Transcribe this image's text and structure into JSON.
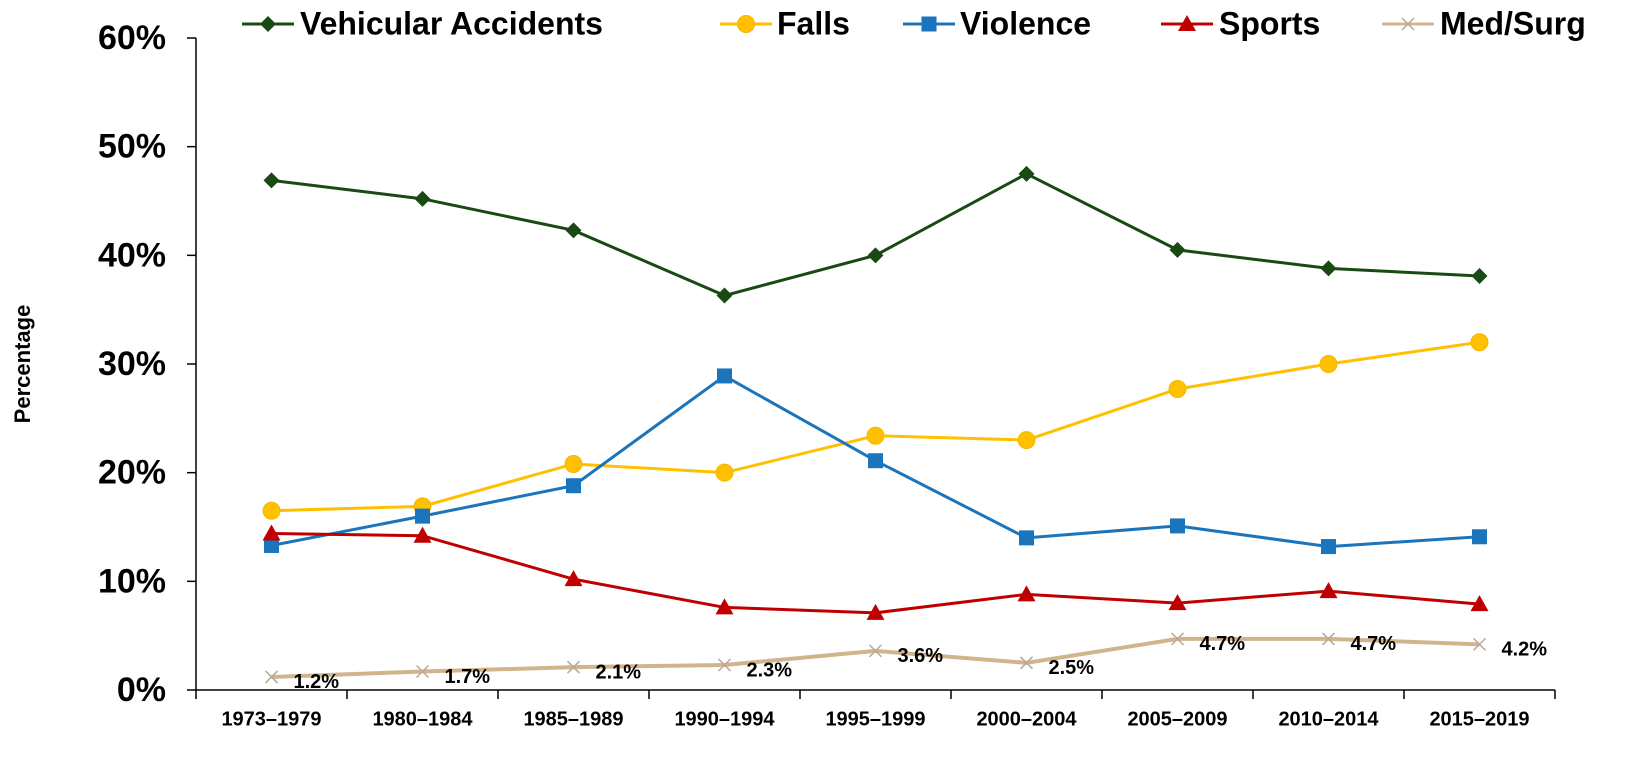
{
  "chart_data": {
    "type": "line",
    "y_label": "Percentage",
    "categories": [
      "1973–1979",
      "1980–1984",
      "1985–1989",
      "1990–1994",
      "1995–1999",
      "2000–2004",
      "2005–2009",
      "2010–2014",
      "2015–2019"
    ],
    "series": [
      {
        "name": "Vehicular Accidents",
        "color": "#1a4a14",
        "marker": "diamond",
        "values": [
          46.9,
          45.2,
          42.3,
          36.3,
          40.0,
          47.5,
          40.5,
          38.8,
          38.1
        ]
      },
      {
        "name": "Falls",
        "color": "#ffc000",
        "marker": "circle",
        "values": [
          16.5,
          16.9,
          20.8,
          20.0,
          23.4,
          23.0,
          27.7,
          30.0,
          32.0
        ]
      },
      {
        "name": "Violence",
        "color": "#1b75bc",
        "marker": "square",
        "values": [
          13.3,
          16.0,
          18.8,
          28.9,
          21.1,
          14.0,
          15.1,
          13.2,
          14.1
        ]
      },
      {
        "name": "Sports",
        "color": "#c00000",
        "marker": "triangle",
        "values": [
          14.4,
          14.2,
          10.2,
          7.6,
          7.1,
          8.8,
          8.0,
          9.1,
          7.9
        ]
      },
      {
        "name": "Med/Surg",
        "color": "#d2b48c",
        "marker": "x",
        "values": [
          1.2,
          1.7,
          2.1,
          2.3,
          3.6,
          2.5,
          4.7,
          4.7,
          4.2
        ],
        "value_labels": [
          "1.2%",
          "1.7%",
          "2.1%",
          "2.3%",
          "3.6%",
          "2.5%",
          "4.7%",
          "4.7%",
          "4.2%"
        ]
      }
    ],
    "ylim": [
      0,
      60
    ],
    "yticks": [
      {
        "value": 0,
        "label": "0%"
      },
      {
        "value": 10,
        "label": "10%"
      },
      {
        "value": 20,
        "label": "20%"
      },
      {
        "value": 30,
        "label": "30%"
      },
      {
        "value": 40,
        "label": "40%"
      },
      {
        "value": 50,
        "label": "50%"
      },
      {
        "value": 60,
        "label": "60%"
      }
    ],
    "legend": "top"
  }
}
